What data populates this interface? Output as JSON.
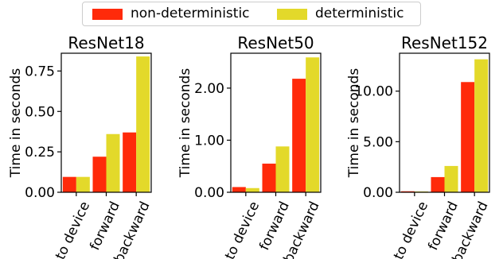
{
  "legend": {
    "placement": "top-center",
    "series": [
      {
        "name": "non-deterministic",
        "color": "#ff2a0a"
      },
      {
        "name": "deterministic",
        "color": "#e3d92a"
      }
    ]
  },
  "chart_data": [
    {
      "type": "bar",
      "title": "ResNet18",
      "ylabel": "Time in seconds",
      "categories": [
        "to device",
        "forward",
        "backward"
      ],
      "series": [
        {
          "name": "non-deterministic",
          "values": [
            0.095,
            0.22,
            0.37
          ]
        },
        {
          "name": "deterministic",
          "values": [
            0.095,
            0.36,
            0.84
          ]
        }
      ],
      "ylim": [
        0,
        0.86
      ],
      "yticks": [
        0.0,
        0.25,
        0.5,
        0.75
      ],
      "ytick_labels": [
        "0.00",
        "0.25",
        "0.50",
        "0.75"
      ],
      "grid": false
    },
    {
      "type": "bar",
      "title": "ResNet50",
      "ylabel": "Time in seconds",
      "categories": [
        "to device",
        "forward",
        "backward"
      ],
      "series": [
        {
          "name": "non-deterministic",
          "values": [
            0.1,
            0.55,
            2.18
          ]
        },
        {
          "name": "deterministic",
          "values": [
            0.08,
            0.88,
            2.59
          ]
        }
      ],
      "ylim": [
        0,
        2.67
      ],
      "yticks": [
        0.0,
        1.0,
        2.0
      ],
      "ytick_labels": [
        "0.00",
        "1.00",
        "2.00"
      ],
      "grid": false
    },
    {
      "type": "bar",
      "title": "ResNet152",
      "ylabel": "Time in seconds",
      "categories": [
        "to device",
        "forward",
        "backward"
      ],
      "series": [
        {
          "name": "non-deterministic",
          "values": [
            0.1,
            1.5,
            10.9
          ]
        },
        {
          "name": "deterministic",
          "values": [
            0.08,
            2.6,
            13.15
          ]
        }
      ],
      "ylim": [
        0,
        13.75
      ],
      "yticks": [
        0.0,
        5.0,
        10.0
      ],
      "ytick_labels": [
        "0.00",
        "5.00",
        "10.00"
      ],
      "grid": false
    }
  ]
}
